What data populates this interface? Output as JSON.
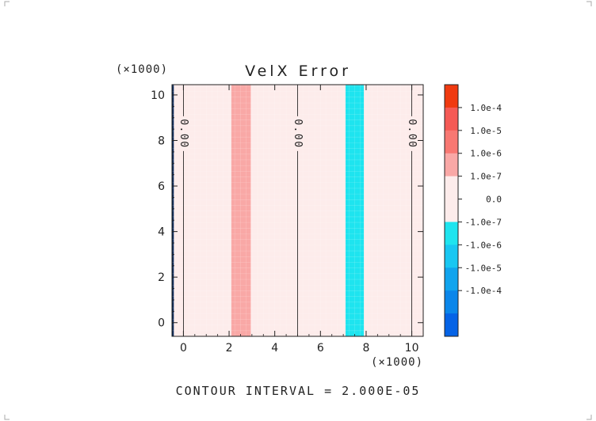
{
  "chart_data": {
    "type": "heatmap",
    "title": "VelX Error",
    "x_multiplier_label": "(×1000)",
    "y_multiplier_label": "(×1000)",
    "xlim": [
      -0.5,
      10.5
    ],
    "ylim": [
      -0.6,
      10.45
    ],
    "xticks": [
      0,
      2,
      4,
      6,
      8,
      10
    ],
    "yticks": [
      0,
      2,
      4,
      6,
      8,
      10
    ],
    "background_band": {
      "level": "0.0",
      "color": "#fdeceb"
    },
    "bands": [
      {
        "x0": 2.1,
        "x1": 2.95,
        "level": "1.0e-7",
        "color": "#f9a8a6"
      },
      {
        "x0": 7.1,
        "x1": 7.9,
        "level": "-1.0e-7",
        "color": "#1ee4ef"
      }
    ],
    "left_edge_band": {
      "x0": -0.5,
      "x1": -0.42,
      "color": "#0b2a5a"
    },
    "contours": [
      {
        "x": 0.0,
        "label": "0.00",
        "label_y": 8.3
      },
      {
        "x": 5.0,
        "label": "0.00",
        "label_y": 8.3
      },
      {
        "x": 10.0,
        "label": "0.00",
        "label_y": 8.3
      }
    ],
    "colorbar": {
      "segments": [
        {
          "color": "#f03a10"
        },
        {
          "color": "#f55a55"
        },
        {
          "color": "#f87872"
        },
        {
          "color": "#f9a8a6"
        },
        {
          "color": "#fdeceb"
        },
        {
          "color": "#fdeceb"
        },
        {
          "color": "#1ee4ef"
        },
        {
          "color": "#18c7f2"
        },
        {
          "color": "#10a4ee"
        },
        {
          "color": "#0a86ea"
        },
        {
          "color": "#0563e6"
        }
      ],
      "labels": [
        "1.0e-4",
        "1.0e-5",
        "1.0e-6",
        "1.0e-7",
        "0.0",
        "-1.0e-7",
        "-1.0e-6",
        "-1.0e-5",
        "-1.0e-4"
      ]
    },
    "footer": "CONTOUR INTERVAL = 2.000E-05"
  }
}
